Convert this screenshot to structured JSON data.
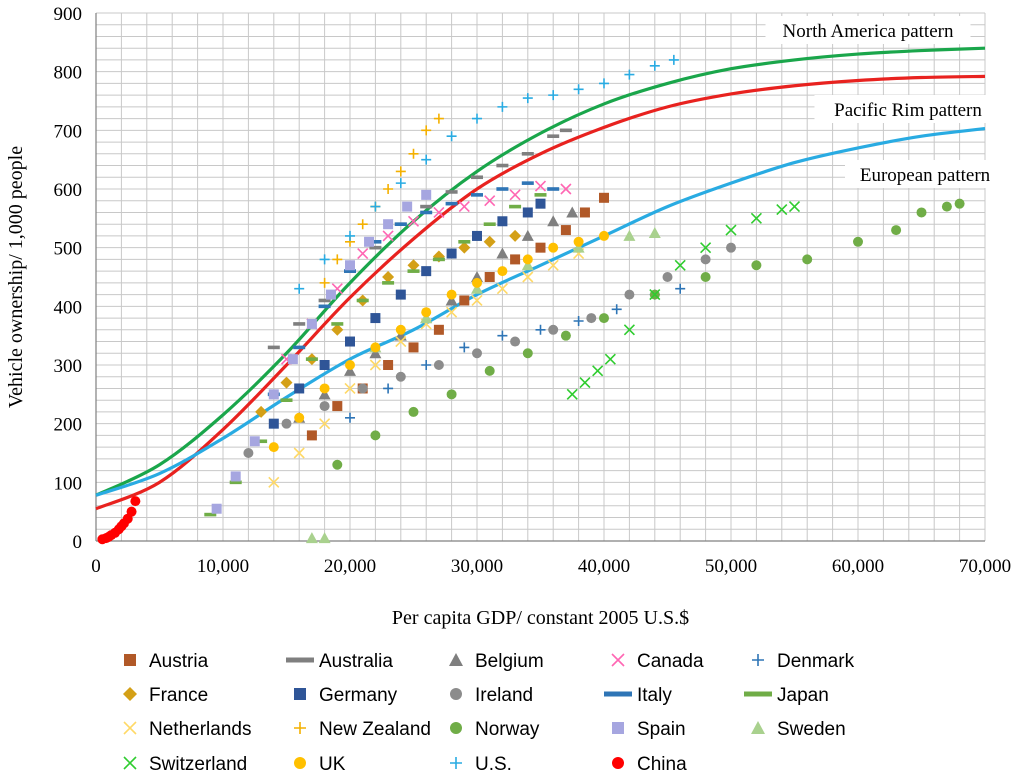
{
  "chart_data": {
    "type": "scatter",
    "xlabel": "Per capita GDP/ constant 2005 U.S.$",
    "ylabel": "Vehicle ownership/ 1,000 people",
    "xlim": [
      0,
      70000
    ],
    "ylim": [
      0,
      900
    ],
    "x_ticks": [
      0,
      10000,
      20000,
      30000,
      40000,
      50000,
      60000,
      70000
    ],
    "x_tick_labels": [
      "0",
      "10,000",
      "20,000",
      "30,000",
      "40,000",
      "50,000",
      "60,000",
      "70,000"
    ],
    "y_ticks": [
      0,
      100,
      200,
      300,
      400,
      500,
      600,
      700,
      800,
      900
    ],
    "y_tick_labels": [
      "0",
      "100",
      "200",
      "300",
      "400",
      "500",
      "600",
      "700",
      "800",
      "900"
    ],
    "grid": true,
    "legend_position": "bottom",
    "curves": [
      {
        "name": "North America pattern",
        "color": "#1aa64b",
        "x": [
          0,
          5000,
          10000,
          15000,
          20000,
          25000,
          30000,
          35000,
          40000,
          45000,
          50000,
          55000,
          60000,
          65000,
          70000
        ],
        "y": [
          78,
          130,
          215,
          320,
          440,
          545,
          630,
          695,
          745,
          780,
          805,
          820,
          830,
          836,
          840
        ]
      },
      {
        "name": "Pacific Rim pattern",
        "color": "#e8221f",
        "x": [
          0,
          5000,
          10000,
          15000,
          20000,
          25000,
          30000,
          35000,
          40000,
          45000,
          50000,
          55000,
          60000,
          65000,
          70000
        ],
        "y": [
          55,
          100,
          190,
          300,
          415,
          515,
          600,
          660,
          705,
          740,
          762,
          776,
          785,
          790,
          792
        ]
      },
      {
        "name": "European pattern",
        "color": "#29abe2",
        "x": [
          0,
          5000,
          10000,
          15000,
          20000,
          25000,
          30000,
          35000,
          40000,
          45000,
          50000,
          55000,
          60000,
          65000,
          70000
        ],
        "y": [
          78,
          115,
          175,
          245,
          310,
          360,
          420,
          470,
          520,
          570,
          610,
          645,
          670,
          690,
          703
        ]
      }
    ],
    "series": [
      {
        "name": "Austria",
        "marker": "square",
        "color": "#b15928",
        "x": [
          17000,
          19000,
          21000,
          23000,
          25000,
          27000,
          29000,
          31000,
          33000,
          35000,
          37000,
          38500,
          40000
        ],
        "y": [
          180,
          230,
          260,
          300,
          330,
          360,
          410,
          450,
          480,
          500,
          530,
          560,
          585
        ]
      },
      {
        "name": "Australia",
        "marker": "dash",
        "color": "#7f7f7f",
        "x": [
          14000,
          16000,
          18000,
          20000,
          22000,
          24000,
          26000,
          28000,
          30000,
          32000,
          34000,
          36000,
          37000
        ],
        "y": [
          330,
          370,
          410,
          460,
          500,
          540,
          570,
          595,
          620,
          640,
          660,
          690,
          700
        ]
      },
      {
        "name": "Belgium",
        "marker": "triangle",
        "color": "#7f7f7f",
        "x": [
          16000,
          18000,
          20000,
          22000,
          24000,
          26000,
          28000,
          30000,
          32000,
          34000,
          36000,
          37500
        ],
        "y": [
          210,
          250,
          290,
          320,
          350,
          380,
          410,
          450,
          490,
          520,
          545,
          560
        ]
      },
      {
        "name": "Canada",
        "marker": "x",
        "color": "#ff66b3",
        "x": [
          15000,
          17000,
          19000,
          21000,
          23000,
          25000,
          27000,
          29000,
          31000,
          33000,
          35000,
          37000
        ],
        "y": [
          310,
          370,
          430,
          490,
          520,
          545,
          560,
          570,
          580,
          590,
          605,
          600
        ]
      },
      {
        "name": "Denmark",
        "marker": "plus",
        "color": "#2e75b6",
        "x": [
          20000,
          23000,
          26000,
          29000,
          32000,
          35000,
          38000,
          41000,
          44000,
          46000
        ],
        "y": [
          210,
          260,
          300,
          330,
          350,
          360,
          375,
          395,
          420,
          430
        ]
      },
      {
        "name": "France",
        "marker": "diamond",
        "color": "#d4a017",
        "x": [
          13000,
          15000,
          17000,
          19000,
          21000,
          23000,
          25000,
          27000,
          29000,
          31000,
          33000
        ],
        "y": [
          220,
          270,
          310,
          360,
          410,
          450,
          470,
          485,
          500,
          510,
          520
        ]
      },
      {
        "name": "Germany",
        "marker": "square",
        "color": "#2f5597",
        "x": [
          14000,
          16000,
          18000,
          20000,
          22000,
          24000,
          26000,
          28000,
          30000,
          32000,
          34000,
          35000
        ],
        "y": [
          200,
          260,
          300,
          340,
          380,
          420,
          460,
          490,
          520,
          545,
          560,
          575
        ]
      },
      {
        "name": "Ireland",
        "marker": "circle",
        "color": "#8c8c8c",
        "x": [
          12000,
          15000,
          18000,
          21000,
          24000,
          27000,
          30000,
          33000,
          36000,
          39000,
          42000,
          45000,
          48000,
          50000
        ],
        "y": [
          150,
          200,
          230,
          260,
          280,
          300,
          320,
          340,
          360,
          380,
          420,
          450,
          480,
          500
        ]
      },
      {
        "name": "Italy",
        "marker": "dash",
        "color": "#2e75b6",
        "x": [
          14000,
          16000,
          18000,
          20000,
          22000,
          24000,
          26000,
          28000,
          30000,
          32000,
          34000,
          36000
        ],
        "y": [
          250,
          330,
          400,
          460,
          510,
          540,
          560,
          575,
          590,
          600,
          610,
          600
        ]
      },
      {
        "name": "Japan",
        "marker": "dash",
        "color": "#70ad47",
        "x": [
          9000,
          11000,
          13000,
          15000,
          17000,
          19000,
          21000,
          23000,
          25000,
          27000,
          29000,
          31000,
          33000,
          35000
        ],
        "y": [
          45,
          100,
          170,
          240,
          310,
          370,
          410,
          440,
          460,
          480,
          510,
          540,
          570,
          590
        ]
      },
      {
        "name": "Netherlands",
        "marker": "x",
        "color": "#ffd966",
        "x": [
          14000,
          16000,
          18000,
          20000,
          22000,
          24000,
          26000,
          28000,
          30000,
          32000,
          34000,
          36000,
          38000
        ],
        "y": [
          100,
          150,
          200,
          260,
          300,
          340,
          370,
          390,
          410,
          430,
          450,
          470,
          490
        ]
      },
      {
        "name": "New Zealand",
        "marker": "plus",
        "color": "#f4b000",
        "x": [
          18000,
          19000,
          20000,
          21000,
          22000,
          23000,
          24000,
          25000,
          26000,
          27000
        ],
        "y": [
          440,
          480,
          510,
          540,
          570,
          600,
          630,
          660,
          700,
          720
        ]
      },
      {
        "name": "Norway",
        "marker": "circle",
        "color": "#70ad47",
        "x": [
          19000,
          22000,
          25000,
          28000,
          31000,
          34000,
          37000,
          40000,
          44000,
          48000,
          52000,
          56000,
          60000,
          63000,
          65000,
          67000,
          68000
        ],
        "y": [
          130,
          180,
          220,
          250,
          290,
          320,
          350,
          380,
          420,
          450,
          470,
          480,
          510,
          530,
          560,
          570,
          575
        ]
      },
      {
        "name": "Spain",
        "marker": "square",
        "color": "#a6a6e0",
        "x": [
          9500,
          11000,
          12500,
          14000,
          15500,
          17000,
          18500,
          20000,
          21500,
          23000,
          24500,
          26000
        ],
        "y": [
          55,
          110,
          170,
          250,
          310,
          370,
          420,
          470,
          510,
          540,
          570,
          590
        ]
      },
      {
        "name": "Sweden",
        "marker": "triangle",
        "color": "#a9d18e",
        "x": [
          17000,
          18000,
          22000,
          26000,
          30000,
          34000,
          38000,
          42000,
          44000
        ],
        "y": [
          5,
          5,
          330,
          380,
          430,
          470,
          500,
          520,
          525
        ]
      },
      {
        "name": "Switzerland",
        "marker": "x",
        "color": "#2fcc2f",
        "x": [
          37500,
          38500,
          39500,
          40500,
          42000,
          44000,
          46000,
          48000,
          50000,
          52000,
          54000,
          55000
        ],
        "y": [
          250,
          270,
          290,
          310,
          360,
          420,
          470,
          500,
          530,
          550,
          565,
          570
        ]
      },
      {
        "name": "UK",
        "marker": "circle",
        "color": "#ffc000",
        "x": [
          14000,
          16000,
          18000,
          20000,
          22000,
          24000,
          26000,
          28000,
          30000,
          32000,
          34000,
          36000,
          38000,
          40000
        ],
        "y": [
          160,
          210,
          260,
          300,
          330,
          360,
          390,
          420,
          440,
          460,
          480,
          500,
          510,
          520
        ]
      },
      {
        "name": "U.S.",
        "marker": "plus",
        "color": "#29abe2",
        "x": [
          16000,
          18000,
          20000,
          22000,
          24000,
          26000,
          28000,
          30000,
          32000,
          34000,
          36000,
          38000,
          40000,
          42000,
          44000,
          45500
        ],
        "y": [
          430,
          480,
          520,
          570,
          610,
          650,
          690,
          720,
          740,
          755,
          760,
          770,
          780,
          795,
          810,
          820
        ]
      },
      {
        "name": "China",
        "marker": "circle",
        "color": "#ff0000",
        "x": [
          500,
          800,
          1000,
          1200,
          1500,
          1800,
          2000,
          2200,
          2500,
          2800,
          3100
        ],
        "y": [
          3,
          5,
          7,
          10,
          14,
          20,
          25,
          30,
          38,
          50,
          68
        ]
      }
    ]
  }
}
